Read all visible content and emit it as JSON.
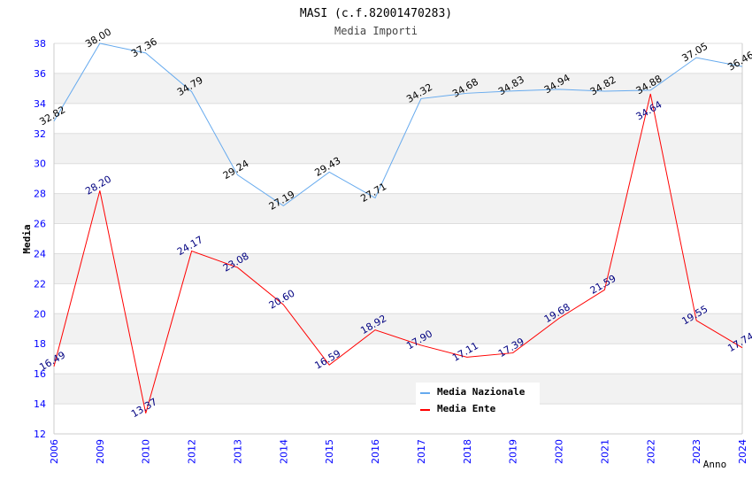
{
  "chart_data": {
    "type": "line",
    "title": "MASI (c.f.82001470283)",
    "subtitle": "Media Importi",
    "xlabel": "Anno",
    "ylabel": "Media",
    "ylim": [
      12,
      38
    ],
    "yticks": [
      "12",
      "14",
      "16",
      "18",
      "20",
      "22",
      "24",
      "26",
      "28",
      "30",
      "32",
      "34",
      "36",
      "38"
    ],
    "categories": [
      "2006",
      "2009",
      "2010",
      "2012",
      "2013",
      "2014",
      "2015",
      "2016",
      "2017",
      "2018",
      "2019",
      "2020",
      "2021",
      "2022",
      "2023",
      "2024"
    ],
    "legend_position": "top-right",
    "grid": true,
    "series": [
      {
        "name": "Media Nazionale",
        "color": "#66aaee",
        "label_color": "#000000",
        "values": [
          32.82,
          38.0,
          37.36,
          34.79,
          29.24,
          27.19,
          29.43,
          27.71,
          34.32,
          34.68,
          34.83,
          34.94,
          34.82,
          34.88,
          37.05,
          36.46
        ],
        "labels": [
          "32.82",
          "38.00",
          "37.36",
          "34.79",
          "29.24",
          "27.19",
          "29.43",
          "27.71",
          "34.32",
          "34.68",
          "34.83",
          "34.94",
          "34.82",
          "34.88",
          "37.05",
          "36.46"
        ]
      },
      {
        "name": "Media Ente",
        "color": "#ff0000",
        "label_color": "#000080",
        "values": [
          16.49,
          28.2,
          13.37,
          24.17,
          23.08,
          20.6,
          16.59,
          18.92,
          17.9,
          17.11,
          17.39,
          19.68,
          21.59,
          34.64,
          19.55,
          17.74
        ],
        "labels": [
          "16.49",
          "28.20",
          "13.37",
          "24.17",
          "23.08",
          "20.60",
          "16.59",
          "18.92",
          "17.90",
          "17.11",
          "17.39",
          "19.68",
          "21.59",
          "34.64",
          "19.55",
          "17.74"
        ]
      }
    ]
  }
}
